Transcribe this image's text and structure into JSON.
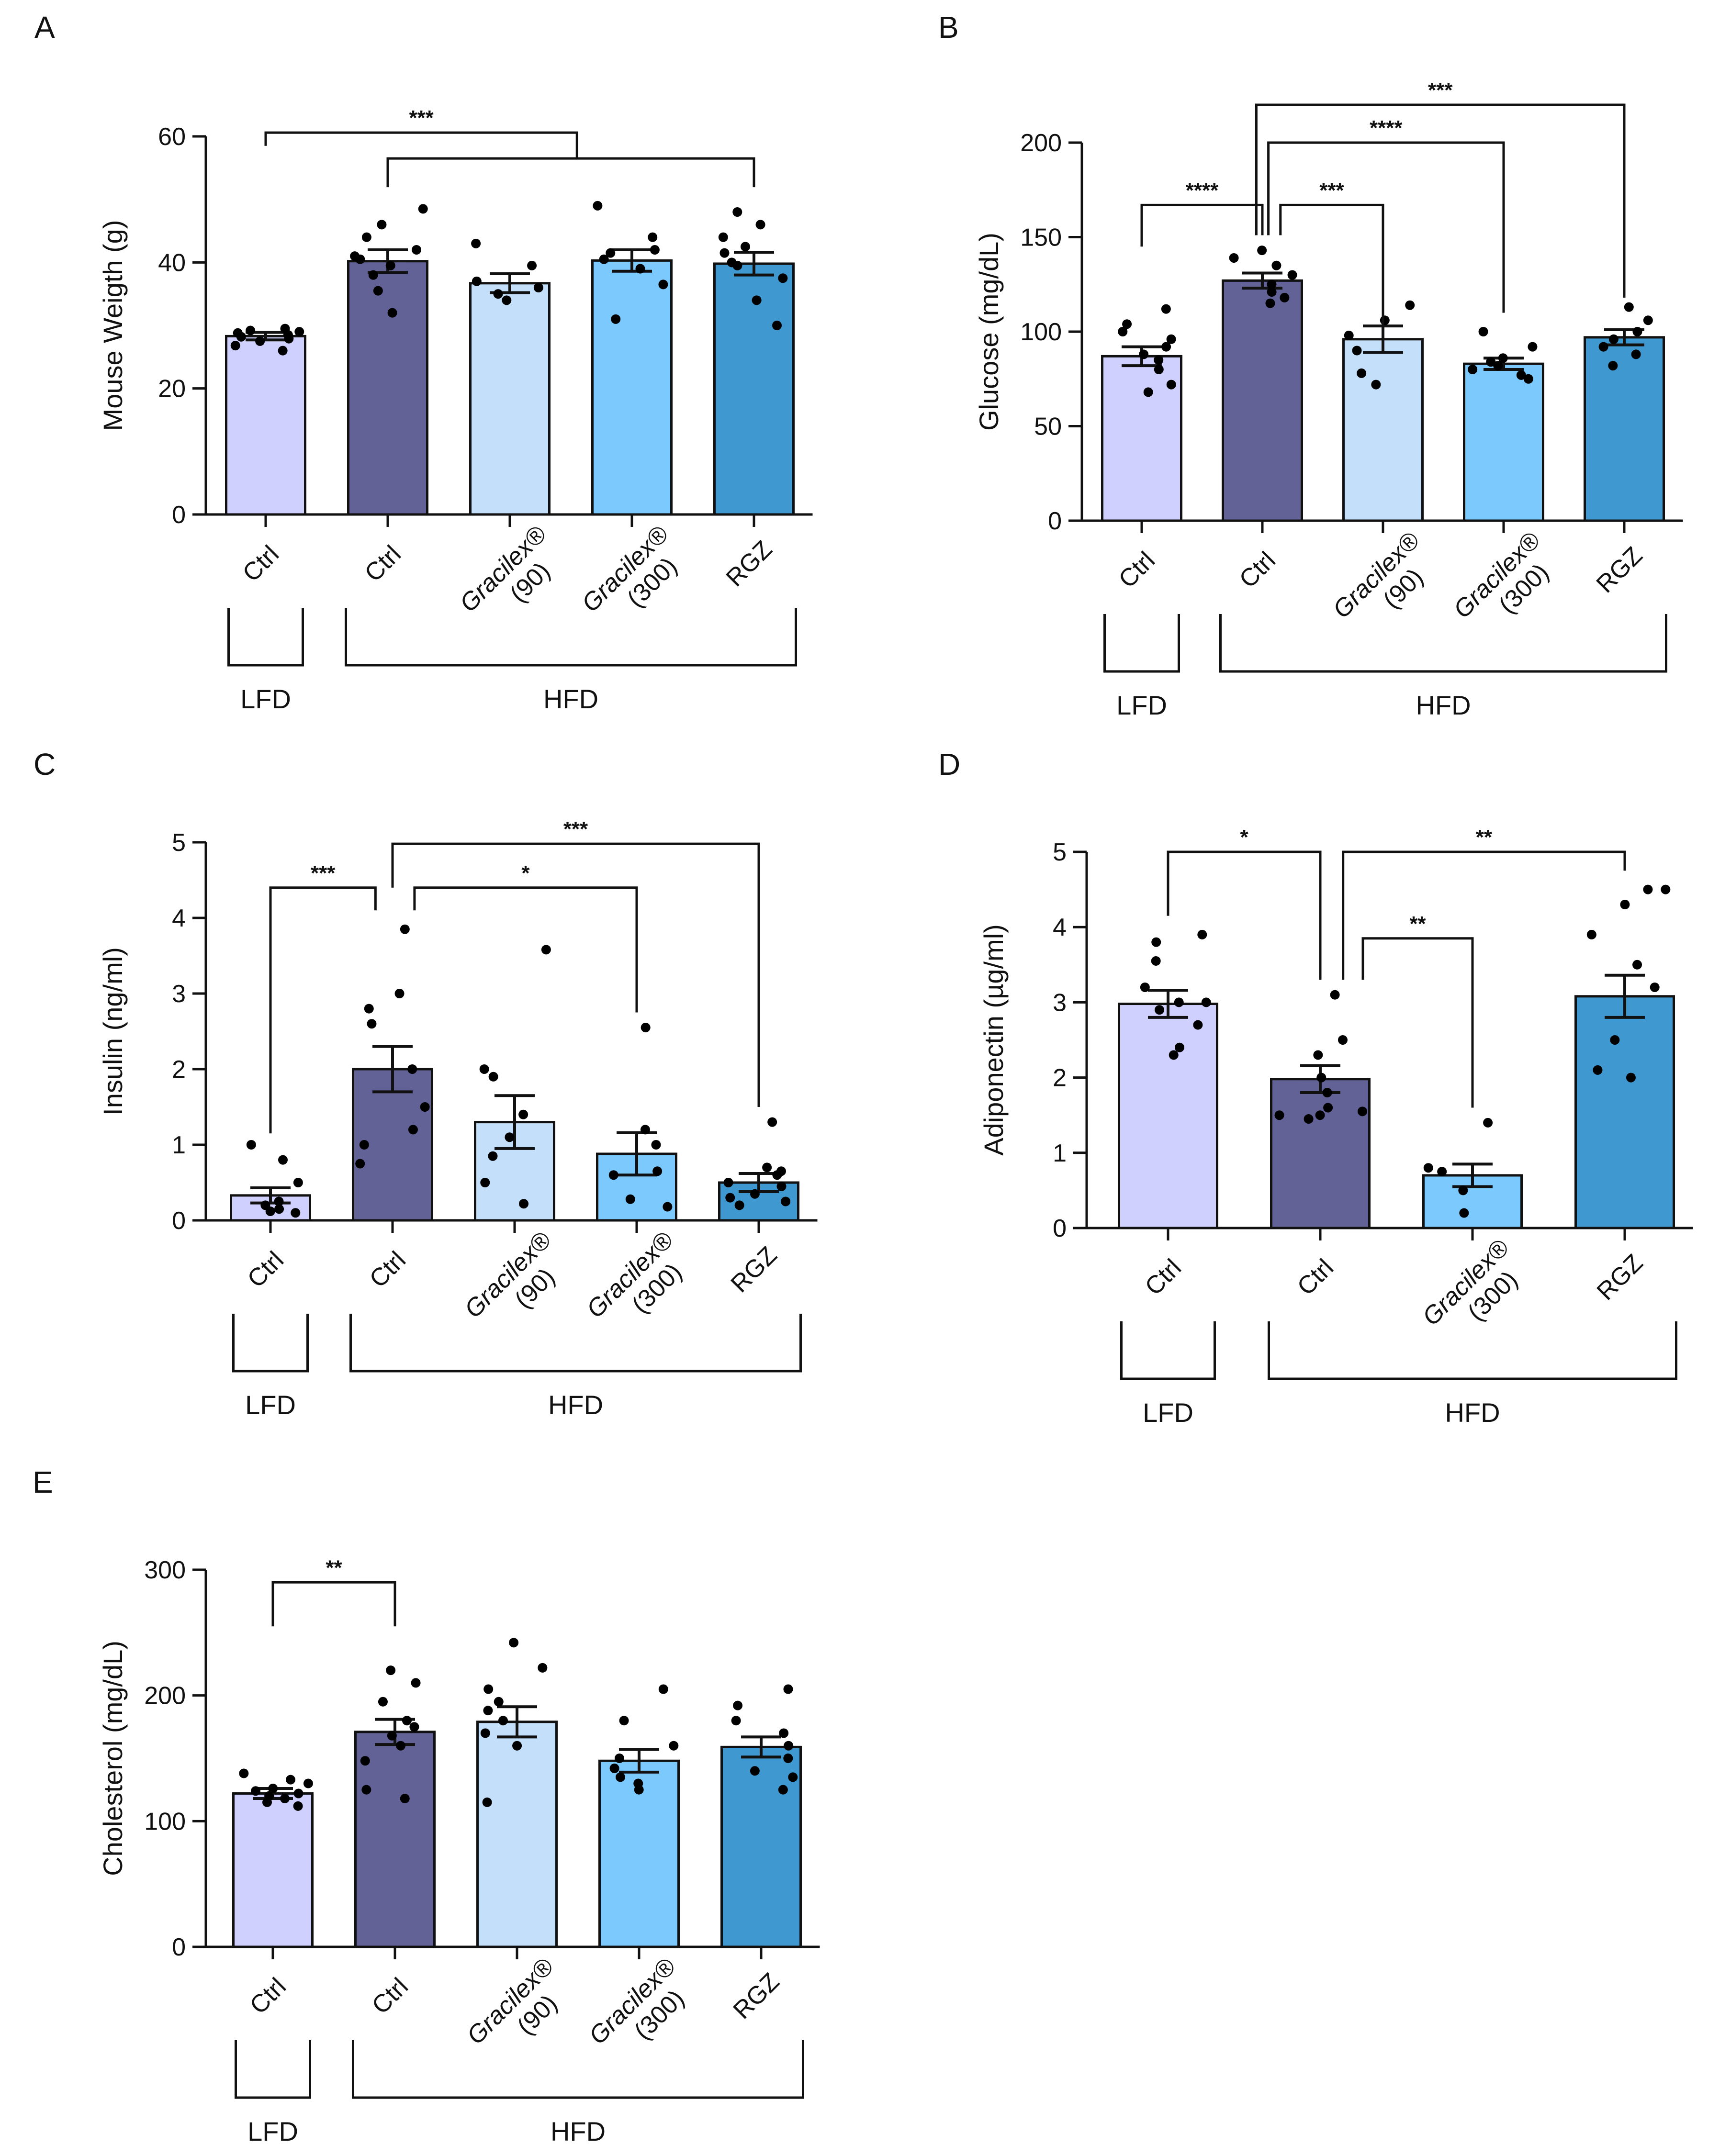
{
  "figure": {
    "colors": {
      "lfd_ctrl": "#d0d0fe",
      "hfd_ctrl": "#636297",
      "gracilex_90": "#c3dffa",
      "gracilex_300": "#7bc9fd",
      "rgz": "#3f98cf",
      "axis": "#111111"
    }
  },
  "chart_data": [
    {
      "id": "A",
      "letter": "A",
      "type": "bar",
      "ylabel": "Mouse Weigth (g)",
      "ylim": [
        0,
        60
      ],
      "yticks": [
        0,
        20,
        40,
        60
      ],
      "categories": [
        {
          "label": "Ctrl",
          "sub": "",
          "colorKey": "lfd_ctrl"
        },
        {
          "label": "Ctrl",
          "sub": "",
          "colorKey": "hfd_ctrl"
        },
        {
          "label": "Gracilex®",
          "sub": "(90)",
          "colorKey": "gracilex_90"
        },
        {
          "label": "Gracilex®",
          "sub": "(300)",
          "colorKey": "gracilex_300"
        },
        {
          "label": "RGZ",
          "sub": "",
          "colorKey": "rgz"
        }
      ],
      "values": [
        28.3,
        40.2,
        36.7,
        40.3,
        39.8
      ],
      "sem": [
        0.6,
        1.8,
        1.5,
        1.7,
        1.8
      ],
      "points": [
        [
          26.0,
          26.8,
          27.5,
          27.9,
          28.2,
          28.5,
          28.8,
          29.0,
          29.2,
          29.5
        ],
        [
          32.0,
          35.5,
          38.0,
          39.5,
          40.5,
          41.0,
          42.0,
          44.0,
          46.0,
          48.5
        ],
        [
          34.0,
          35.0,
          36.0,
          37.0,
          39.5,
          43.0
        ],
        [
          31.0,
          36.5,
          39.0,
          40.5,
          41.5,
          42.0,
          44.0,
          49.0
        ],
        [
          30.0,
          34.0,
          37.5,
          39.5,
          40.0,
          41.5,
          42.5,
          44.0,
          46.0,
          48.0
        ]
      ],
      "groups": [
        {
          "label": "LFD",
          "from": 0,
          "to": 0
        },
        {
          "label": "HFD",
          "from": 1,
          "to": 4
        }
      ],
      "brackets": [
        {
          "from": 0,
          "to": [
            1,
            4
          ],
          "to_mid": 2.55,
          "level": 60.6,
          "from_end": 58.5,
          "label": "***"
        },
        {
          "from": 1,
          "to": 4,
          "level": 56.5,
          "label": ""
        }
      ]
    },
    {
      "id": "B",
      "letter": "B",
      "type": "bar",
      "ylabel": "Glucose (mg/dL)",
      "ylim": [
        0,
        200
      ],
      "yticks": [
        0,
        50,
        100,
        150,
        200
      ],
      "categories": [
        {
          "label": "Ctrl",
          "sub": "",
          "colorKey": "lfd_ctrl"
        },
        {
          "label": "Ctrl",
          "sub": "",
          "colorKey": "hfd_ctrl"
        },
        {
          "label": "Gracilex®",
          "sub": "(90)",
          "colorKey": "gracilex_90"
        },
        {
          "label": "Gracilex®",
          "sub": "(300)",
          "colorKey": "gracilex_300"
        },
        {
          "label": "RGZ",
          "sub": "",
          "colorKey": "rgz"
        }
      ],
      "values": [
        87,
        127,
        96,
        83,
        97
      ],
      "sem": [
        5,
        4,
        7,
        3,
        4
      ],
      "points": [
        [
          68,
          72,
          80,
          85,
          88,
          92,
          96,
          100,
          104,
          112
        ],
        [
          115,
          118,
          121,
          125,
          130,
          135,
          139,
          143
        ],
        [
          72,
          78,
          90,
          98,
          106,
          114
        ],
        [
          75,
          77,
          80,
          82,
          84,
          86,
          92,
          100
        ],
        [
          82,
          88,
          92,
          96,
          100,
          106,
          113
        ]
      ],
      "groups": [
        {
          "label": "LFD",
          "from": 0,
          "to": 0
        },
        {
          "label": "HFD",
          "from": 1,
          "to": 4
        }
      ],
      "brackets": [
        {
          "from": 0,
          "to": 1,
          "level": 167,
          "from_end": 145,
          "to_end": 151,
          "label": "****"
        },
        {
          "from": 1,
          "to": 2,
          "level": 167,
          "from_end": 151,
          "to_end": 92,
          "label": "***",
          "from_off": 0.15
        },
        {
          "from": 1,
          "to": 3,
          "level": 200,
          "from_end": 151,
          "to_end": 110,
          "label": "****",
          "from_off": 0.05
        },
        {
          "from": 1,
          "to": 4,
          "level": 220,
          "from_end": 151,
          "to_end": 118,
          "label": "***",
          "from_off": -0.05
        }
      ]
    },
    {
      "id": "C",
      "letter": "C",
      "type": "bar",
      "ylabel": "Insulin (ng/ml)",
      "ylim": [
        0,
        5
      ],
      "yticks": [
        0,
        1,
        2,
        3,
        4,
        5
      ],
      "categories": [
        {
          "label": "Ctrl",
          "sub": "",
          "colorKey": "lfd_ctrl"
        },
        {
          "label": "Ctrl",
          "sub": "",
          "colorKey": "hfd_ctrl"
        },
        {
          "label": "Gracilex®",
          "sub": "(90)",
          "colorKey": "gracilex_90"
        },
        {
          "label": "Gracilex®",
          "sub": "(300)",
          "colorKey": "gracilex_300"
        },
        {
          "label": "RGZ",
          "sub": "",
          "colorKey": "rgz"
        }
      ],
      "values": [
        0.33,
        2.0,
        1.3,
        0.88,
        0.5
      ],
      "sem": [
        0.1,
        0.3,
        0.35,
        0.28,
        0.12
      ],
      "points": [
        [
          0.1,
          0.12,
          0.15,
          0.2,
          0.25,
          0.5,
          0.8,
          1.0
        ],
        [
          0.75,
          1.0,
          1.2,
          1.5,
          2.0,
          2.6,
          2.8,
          3.0,
          3.85
        ],
        [
          0.22,
          0.5,
          0.85,
          1.1,
          1.4,
          1.9,
          2.0,
          3.58
        ],
        [
          0.18,
          0.28,
          0.6,
          0.65,
          1.0,
          1.2,
          2.55
        ],
        [
          0.2,
          0.25,
          0.3,
          0.35,
          0.45,
          0.5,
          0.6,
          0.65,
          0.7,
          1.3
        ]
      ],
      "groups": [
        {
          "label": "LFD",
          "from": 0,
          "to": 0
        },
        {
          "label": "HFD",
          "from": 1,
          "to": 4
        }
      ],
      "brackets": [
        {
          "from": 0,
          "to": 1,
          "level": 4.4,
          "from_end": 1.15,
          "to_end": 4.1,
          "label": "***",
          "to_off": -0.14
        },
        {
          "from": 1,
          "to": 3,
          "level": 4.4,
          "from_end": 4.1,
          "to_end": 2.75,
          "label": "*",
          "from_off": 0.18
        },
        {
          "from": 1,
          "to": 4,
          "level": 4.98,
          "from_end": 4.4,
          "to_end": 1.5,
          "label": "***"
        }
      ]
    },
    {
      "id": "D",
      "letter": "D",
      "type": "bar",
      "ylabel": "Adiponectin (µg/ml)",
      "ylim": [
        0,
        5
      ],
      "yticks": [
        0,
        1,
        2,
        3,
        4,
        5
      ],
      "categories": [
        {
          "label": "Ctrl",
          "sub": "",
          "colorKey": "lfd_ctrl"
        },
        {
          "label": "Ctrl",
          "sub": "",
          "colorKey": "hfd_ctrl"
        },
        {
          "label": "Gracilex®",
          "sub": "(300)",
          "colorKey": "gracilex_300"
        },
        {
          "label": "RGZ",
          "sub": "",
          "colorKey": "rgz"
        }
      ],
      "values": [
        2.98,
        1.98,
        0.7,
        3.08
      ],
      "sem": [
        0.18,
        0.18,
        0.15,
        0.28
      ],
      "points": [
        [
          2.3,
          2.4,
          2.7,
          2.9,
          3.0,
          3.0,
          3.2,
          3.55,
          3.8,
          3.9
        ],
        [
          1.45,
          1.5,
          1.5,
          1.55,
          1.6,
          1.8,
          2.0,
          2.3,
          2.5,
          3.1
        ],
        [
          0.2,
          0.5,
          0.75,
          0.8,
          1.4
        ],
        [
          2.0,
          2.1,
          2.5,
          3.2,
          3.5,
          3.9,
          4.3,
          4.5,
          4.5
        ]
      ],
      "groups": [
        {
          "label": "LFD",
          "from": 0,
          "to": 0
        },
        {
          "label": "HFD",
          "from": 1,
          "to": 3
        }
      ],
      "brackets": [
        {
          "from": 0,
          "to": 1,
          "level": 5.0,
          "from_end": 4.15,
          "to_end": 3.3,
          "label": "*"
        },
        {
          "from": 1,
          "to": 3,
          "level": 5.0,
          "from_end": 3.3,
          "to_end": 4.75,
          "label": "**",
          "from_off": 0.15
        },
        {
          "from": 1,
          "to": 2,
          "level": 3.85,
          "from_end": 3.3,
          "to_end": 1.6,
          "label": "**",
          "from_off": 0.28
        }
      ]
    },
    {
      "id": "E",
      "letter": "E",
      "type": "bar",
      "ylabel": "Cholesterol (mg/dL)",
      "ylim": [
        0,
        300
      ],
      "yticks": [
        0,
        100,
        200,
        300
      ],
      "categories": [
        {
          "label": "Ctrl",
          "sub": "",
          "colorKey": "lfd_ctrl"
        },
        {
          "label": "Ctrl",
          "sub": "",
          "colorKey": "hfd_ctrl"
        },
        {
          "label": "Gracilex®",
          "sub": "(90)",
          "colorKey": "gracilex_90"
        },
        {
          "label": "Gracilex®",
          "sub": "(300)",
          "colorKey": "gracilex_300"
        },
        {
          "label": "RGZ",
          "sub": "",
          "colorKey": "rgz"
        }
      ],
      "values": [
        122,
        171,
        179,
        148,
        159
      ],
      "sem": [
        4,
        10,
        12,
        9,
        8
      ],
      "points": [
        [
          112,
          115,
          118,
          120,
          122,
          124,
          126,
          130,
          133,
          138
        ],
        [
          118,
          125,
          148,
          160,
          168,
          175,
          180,
          195,
          210,
          220
        ],
        [
          115,
          160,
          170,
          180,
          188,
          195,
          205,
          222,
          242
        ],
        [
          125,
          130,
          135,
          142,
          150,
          160,
          180,
          205
        ],
        [
          125,
          135,
          140,
          150,
          160,
          170,
          180,
          192,
          205
        ]
      ],
      "groups": [
        {
          "label": "LFD",
          "from": 0,
          "to": 0
        },
        {
          "label": "HFD",
          "from": 1,
          "to": 4
        }
      ],
      "brackets": [
        {
          "from": 0,
          "to": 1,
          "level": 290,
          "from_end": 255,
          "to_end": 255,
          "label": "**"
        }
      ]
    }
  ]
}
